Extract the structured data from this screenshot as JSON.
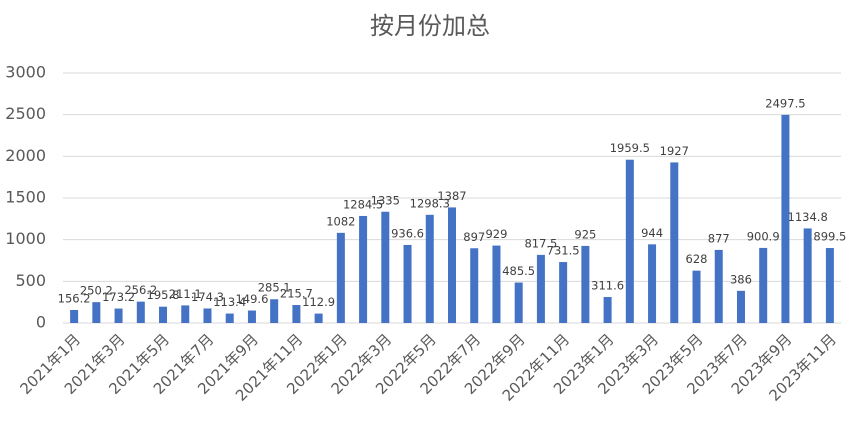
{
  "chart_data": {
    "type": "bar",
    "title": "按月份加总",
    "categories": [
      "2021年1月",
      null,
      "2021年3月",
      null,
      "2021年5月",
      null,
      "2021年7月",
      null,
      "2021年9月",
      null,
      "2021年11月",
      null,
      "2022年1月",
      null,
      "2022年3月",
      null,
      "2022年5月",
      null,
      "2022年7月",
      null,
      "2022年9月",
      null,
      "2022年11月",
      null,
      "2023年1月",
      null,
      "2023年3月",
      null,
      "2023年5月",
      null,
      "2023年7月",
      null,
      "2023年9月",
      null,
      "2023年11月"
    ],
    "values": [
      156.2,
      250.2,
      173.2,
      256.2,
      195.8,
      211.1,
      174.3,
      113.4,
      149.6,
      285.1,
      215.7,
      112.9,
      1082,
      1284.5,
      1335,
      936.6,
      1298.3,
      1387,
      897,
      929,
      485.5,
      817.5,
      731.5,
      925,
      311.6,
      1959.5,
      944,
      1927,
      628,
      877,
      386,
      900.9,
      2497.5,
      1134.8,
      899.5
    ],
    "color": "#4472c4",
    "ylim": [
      0,
      3000
    ],
    "yticks": [
      0,
      500,
      1000,
      1500,
      2000,
      2500,
      3000
    ],
    "grid": true
  }
}
